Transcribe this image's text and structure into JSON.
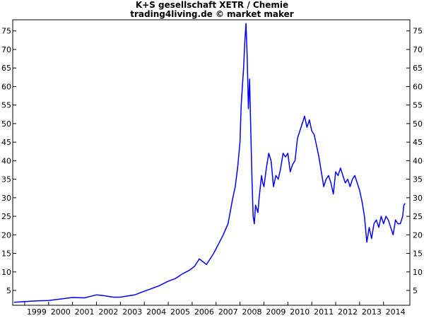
{
  "chart_data": {
    "type": "line",
    "title": "K+S gesellschaft XETR / Chemie",
    "subtitle": "trading4living.de © market maker",
    "xlabel": "",
    "ylabel": "",
    "x_tick_labels": [
      "1999",
      "2000",
      "2001",
      "2002",
      "2003",
      "2004",
      "2005",
      "2006",
      "2007",
      "2008",
      "2009",
      "2010",
      "2011",
      "2012",
      "2013",
      "2014"
    ],
    "y_tick_labels": [
      "5",
      "10",
      "15",
      "20",
      "25",
      "30",
      "35",
      "40",
      "45",
      "50",
      "55",
      "60",
      "65",
      "70",
      "75"
    ],
    "y_ticks": [
      5,
      10,
      15,
      20,
      25,
      30,
      35,
      40,
      45,
      50,
      55,
      60,
      65,
      70,
      75
    ],
    "xlim": [
      1998.5,
      2015.1
    ],
    "ylim": [
      1,
      78
    ],
    "grid": false,
    "line_color": "#0000ff",
    "series": [
      {
        "x": [
          1998.55,
          1999.0,
          1999.5,
          2000.0,
          2000.5,
          2001.0,
          2001.5,
          2002.0,
          2002.3,
          2002.7,
          2003.0,
          2003.3,
          2003.6,
          2004.0,
          2004.3,
          2004.6,
          2005.0,
          2005.3,
          2005.6,
          2005.9,
          2006.1,
          2006.3,
          2006.6,
          2006.9,
          2007.1,
          2007.3,
          2007.5,
          2007.7,
          2007.8,
          2007.9,
          2008.0,
          2008.05,
          2008.15,
          2008.2,
          2008.25,
          2008.3,
          2008.35,
          2008.4,
          2008.45,
          2008.5,
          2008.55,
          2008.6,
          2008.65,
          2008.7,
          2008.75,
          2008.8,
          2008.85,
          2008.9,
          2008.95,
          2009.0,
          2009.1,
          2009.2,
          2009.3,
          2009.4,
          2009.5,
          2009.6,
          2009.7,
          2009.8,
          2009.9,
          2010.0,
          2010.1,
          2010.2,
          2010.3,
          2010.4,
          2010.5,
          2010.6,
          2010.7,
          2010.8,
          2010.9,
          2011.0,
          2011.1,
          2011.2,
          2011.3,
          2011.4,
          2011.5,
          2011.6,
          2011.7,
          2011.8,
          2011.9,
          2012.0,
          2012.1,
          2012.2,
          2012.3,
          2012.4,
          2012.5,
          2012.6,
          2012.7,
          2012.8,
          2012.9,
          2013.0,
          2013.1,
          2013.2,
          2013.3,
          2013.35,
          2013.4,
          2013.5,
          2013.6,
          2013.7,
          2013.8,
          2013.9,
          2014.0,
          2014.1,
          2014.2,
          2014.3,
          2014.4,
          2014.5,
          2014.6,
          2014.7,
          2014.8,
          2014.85,
          2014.9
        ],
        "values": [
          1.8,
          2.0,
          2.2,
          2.3,
          2.7,
          3.1,
          3.0,
          3.8,
          3.6,
          3.2,
          3.2,
          3.5,
          3.8,
          4.8,
          5.5,
          6.2,
          7.5,
          8.2,
          9.5,
          10.5,
          11.5,
          13.5,
          12.0,
          15.0,
          17.5,
          20.0,
          23.0,
          30.0,
          33.0,
          38.0,
          45.0,
          55.0,
          65.0,
          72.0,
          77.0,
          68.0,
          54.0,
          62.0,
          48.0,
          35.0,
          25.0,
          23.0,
          28.0,
          27.0,
          26.0,
          30.0,
          33.0,
          36.0,
          34.0,
          33.0,
          38.0,
          42.0,
          40.0,
          33.0,
          36.0,
          35.0,
          38.0,
          42.0,
          41.0,
          42.0,
          37.0,
          39.0,
          40.0,
          46.0,
          48.0,
          50.0,
          52.0,
          49.0,
          51.0,
          48.0,
          47.0,
          44.0,
          41.0,
          37.0,
          33.0,
          35.0,
          36.0,
          34.0,
          31.0,
          37.0,
          36.0,
          38.0,
          36.0,
          34.0,
          35.0,
          33.0,
          35.0,
          36.0,
          34.0,
          32.0,
          29.0,
          25.0,
          18.0,
          20.0,
          22.0,
          19.0,
          23.0,
          24.0,
          22.0,
          25.0,
          23.0,
          25.0,
          24.0,
          22.0,
          20.0,
          24.0,
          23.0,
          23.0,
          25.0,
          28.0,
          28.5
        ]
      }
    ]
  }
}
